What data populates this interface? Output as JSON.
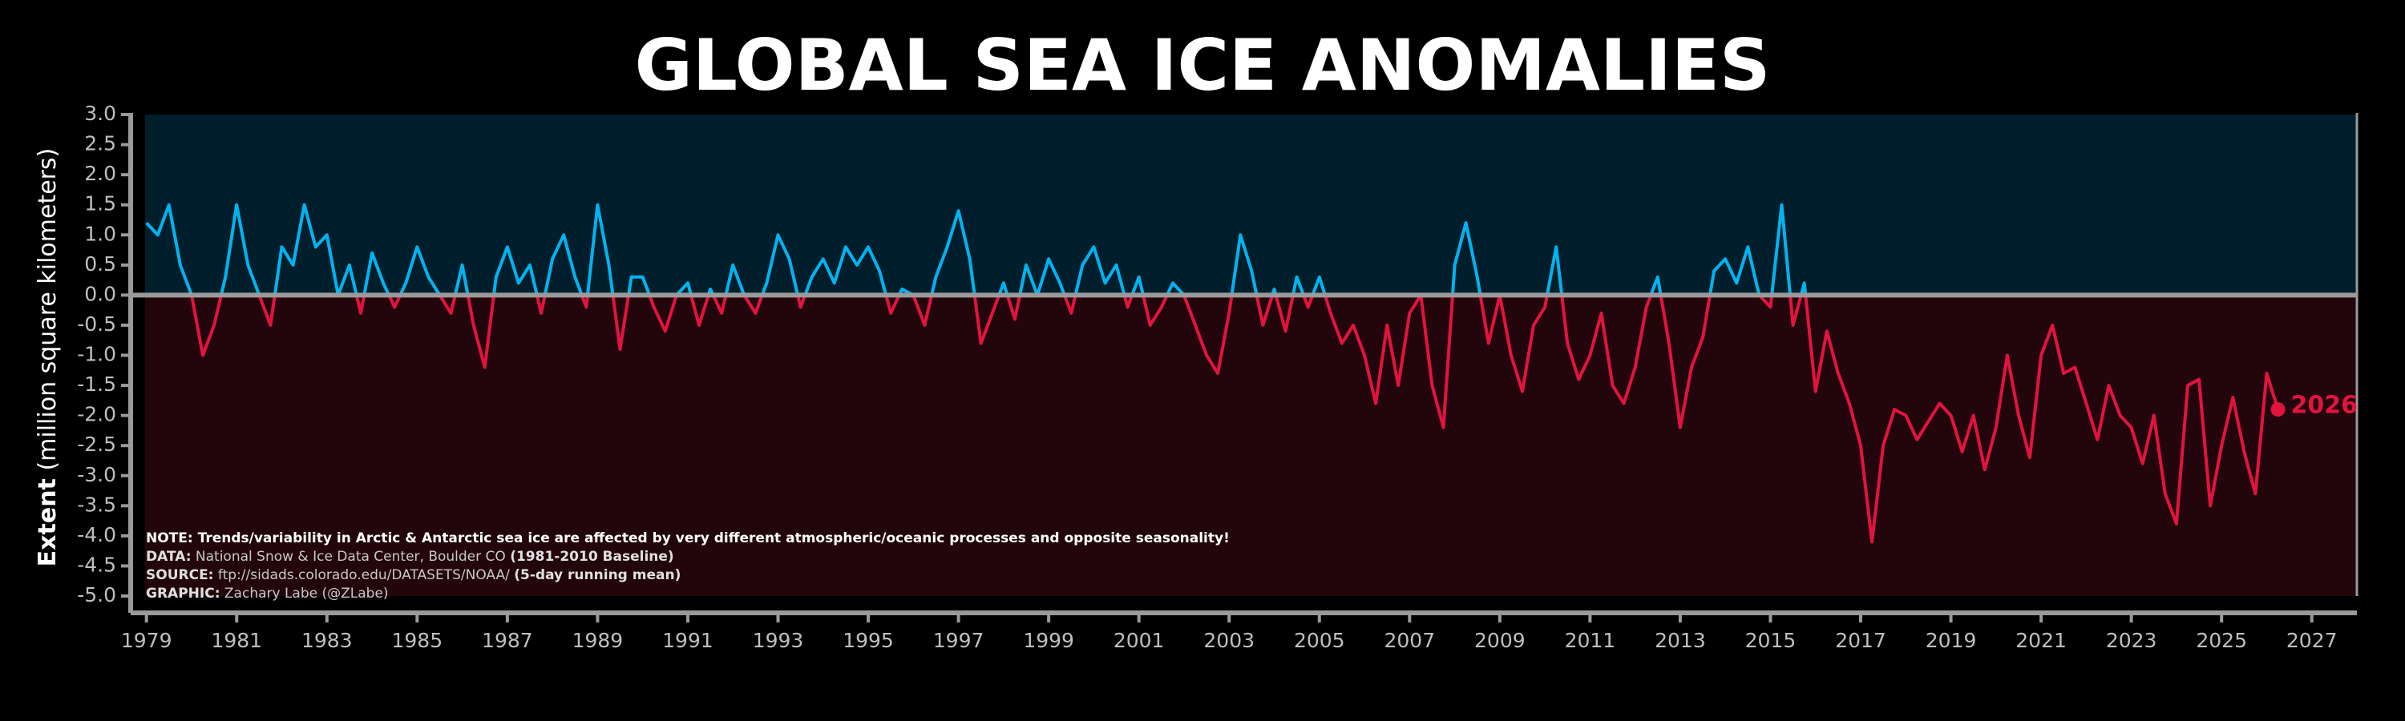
{
  "chart_data": {
    "type": "line",
    "title": "GLOBAL SEA ICE ANOMALIES",
    "y_label": {
      "bold": "Extent",
      "rest": "(million square kilometers)"
    },
    "notes": [
      {
        "label": "NOTE:",
        "text": "Trends/variability in Arctic & Antarctic sea ice are affected by very different atmospheric/oceanic processes and opposite seasonality!"
      },
      {
        "label": "DATA:",
        "text": "National Snow & Ice Data Center, Boulder CO",
        "extra": "(1981-2010 Baseline)"
      },
      {
        "label": "SOURCE:",
        "text": "ftp://sidads.colorado.edu/DATASETS/NOAA/",
        "extra": "(5-day running mean)"
      },
      {
        "label": "GRAPHIC:",
        "text": "Zachary Labe (@ZLabe)"
      }
    ],
    "end_label": "2026",
    "colors": {
      "above": "#00b4f0",
      "below": "#e3133f",
      "bg_above": "#001e2b",
      "bg_below": "#22060c",
      "axis": "#9a9a9a"
    },
    "xlim": [
      1978.65,
      2028
    ],
    "ylim": [
      -5,
      3
    ],
    "xticks": [
      1979,
      1981,
      1983,
      1985,
      1987,
      1989,
      1991,
      1993,
      1995,
      1997,
      1999,
      2001,
      2003,
      2005,
      2007,
      2009,
      2011,
      2013,
      2015,
      2017,
      2019,
      2021,
      2023,
      2025,
      2027
    ],
    "yticks": [
      {
        "value": 3,
        "label": "3.0"
      },
      {
        "value": 2.5,
        "label": "2.5"
      },
      {
        "value": 2,
        "label": "2.0"
      },
      {
        "value": 1.5,
        "label": "1.5"
      },
      {
        "value": 1,
        "label": "1.0"
      },
      {
        "value": 0.5,
        "label": "0.5"
      },
      {
        "value": 0,
        "label": "0.0"
      },
      {
        "value": -0.5,
        "label": "-0.5"
      },
      {
        "value": -1,
        "label": "-1.0"
      },
      {
        "value": -1.5,
        "label": "-1.5"
      },
      {
        "value": -2,
        "label": "-2.0"
      },
      {
        "value": -2.5,
        "label": "-2.5"
      },
      {
        "value": -3,
        "label": "-3.0"
      },
      {
        "value": -3.5,
        "label": "-3.5"
      },
      {
        "value": -4,
        "label": "-4.0"
      },
      {
        "value": -4.5,
        "label": "-4.5"
      },
      {
        "value": -5,
        "label": "-5.0"
      }
    ],
    "x": [
      1979,
      1979.25,
      1979.5,
      1979.75,
      1980,
      1980.25,
      1980.5,
      1980.75,
      1981,
      1981.25,
      1981.5,
      1981.75,
      1982,
      1982.25,
      1982.5,
      1982.75,
      1983,
      1983.25,
      1983.5,
      1983.75,
      1984,
      1984.25,
      1984.5,
      1984.75,
      1985,
      1985.25,
      1985.5,
      1985.75,
      1986,
      1986.25,
      1986.5,
      1986.75,
      1987,
      1987.25,
      1987.5,
      1987.75,
      1988,
      1988.25,
      1988.5,
      1988.75,
      1989,
      1989.25,
      1989.5,
      1989.75,
      1990,
      1990.25,
      1990.5,
      1990.75,
      1991,
      1991.25,
      1991.5,
      1991.75,
      1992,
      1992.25,
      1992.5,
      1992.75,
      1993,
      1993.25,
      1993.5,
      1993.75,
      1994,
      1994.25,
      1994.5,
      1994.75,
      1995,
      1995.25,
      1995.5,
      1995.75,
      1996,
      1996.25,
      1996.5,
      1996.75,
      1997,
      1997.25,
      1997.5,
      1997.75,
      1998,
      1998.25,
      1998.5,
      1998.75,
      1999,
      1999.25,
      1999.5,
      1999.75,
      2000,
      2000.25,
      2000.5,
      2000.75,
      2001,
      2001.25,
      2001.5,
      2001.75,
      2002,
      2002.25,
      2002.5,
      2002.75,
      2003,
      2003.25,
      2003.5,
      2003.75,
      2004,
      2004.25,
      2004.5,
      2004.75,
      2005,
      2005.25,
      2005.5,
      2005.75,
      2006,
      2006.25,
      2006.5,
      2006.75,
      2007,
      2007.25,
      2007.5,
      2007.75,
      2008,
      2008.25,
      2008.5,
      2008.75,
      2009,
      2009.25,
      2009.5,
      2009.75,
      2010,
      2010.25,
      2010.5,
      2010.75,
      2011,
      2011.25,
      2011.5,
      2011.75,
      2012,
      2012.25,
      2012.5,
      2012.75,
      2013,
      2013.25,
      2013.5,
      2013.75,
      2014,
      2014.25,
      2014.5,
      2014.75,
      2015,
      2015.25,
      2015.5,
      2015.75,
      2016,
      2016.25,
      2016.5,
      2016.75,
      2017,
      2017.25,
      2017.5,
      2017.75,
      2018,
      2018.25,
      2018.5,
      2018.75,
      2019,
      2019.25,
      2019.5,
      2019.75,
      2020,
      2020.25,
      2020.5,
      2020.75,
      2021,
      2021.25,
      2021.5,
      2021.75,
      2022,
      2022.25,
      2022.5,
      2022.75,
      2023,
      2023.25,
      2023.5,
      2023.75,
      2024,
      2024.25,
      2024.5,
      2024.75,
      2025,
      2025.25,
      2025.5,
      2025.75,
      2026,
      2026.25
    ],
    "values": [
      1.2,
      1.0,
      1.5,
      0.5,
      0.0,
      -1.0,
      -0.5,
      0.3,
      1.5,
      0.5,
      0.0,
      -0.5,
      0.8,
      0.5,
      1.5,
      0.8,
      1.0,
      0.0,
      0.5,
      -0.3,
      0.7,
      0.2,
      -0.2,
      0.2,
      0.8,
      0.3,
      0.0,
      -0.3,
      0.5,
      -0.5,
      -1.2,
      0.3,
      0.8,
      0.2,
      0.5,
      -0.3,
      0.6,
      1.0,
      0.3,
      -0.2,
      1.5,
      0.5,
      -0.9,
      0.3,
      0.3,
      -0.2,
      -0.6,
      0.0,
      0.2,
      -0.5,
      0.1,
      -0.3,
      0.5,
      0.0,
      -0.3,
      0.2,
      1.0,
      0.6,
      -0.2,
      0.3,
      0.6,
      0.2,
      0.8,
      0.5,
      0.8,
      0.4,
      -0.3,
      0.1,
      0.0,
      -0.5,
      0.3,
      0.8,
      1.4,
      0.6,
      -0.8,
      -0.3,
      0.2,
      -0.4,
      0.5,
      0.0,
      0.6,
      0.2,
      -0.3,
      0.5,
      0.8,
      0.2,
      0.5,
      -0.2,
      0.3,
      -0.5,
      -0.2,
      0.2,
      0.0,
      -0.5,
      -1.0,
      -1.3,
      -0.3,
      1.0,
      0.4,
      -0.5,
      0.1,
      -0.6,
      0.3,
      -0.2,
      0.3,
      -0.3,
      -0.8,
      -0.5,
      -1.0,
      -1.8,
      -0.5,
      -1.5,
      -0.3,
      0.0,
      -1.5,
      -2.2,
      0.5,
      1.2,
      0.3,
      -0.8,
      0.0,
      -1.0,
      -1.6,
      -0.5,
      -0.2,
      0.8,
      -0.8,
      -1.4,
      -1.0,
      -0.3,
      -1.5,
      -1.8,
      -1.2,
      -0.2,
      0.3,
      -0.8,
      -2.2,
      -1.2,
      -0.7,
      0.4,
      0.6,
      0.2,
      0.8,
      0.0,
      -0.2,
      1.5,
      -0.5,
      0.2,
      -1.6,
      -0.6,
      -1.3,
      -1.8,
      -2.5,
      -4.1,
      -2.5,
      -1.9,
      -2.0,
      -2.4,
      -2.1,
      -1.8,
      -2.0,
      -2.6,
      -2.0,
      -2.9,
      -2.2,
      -1.0,
      -2.0,
      -2.7,
      -1.0,
      -0.5,
      -1.3,
      -1.2,
      -1.8,
      -2.4,
      -1.5,
      -2.0,
      -2.2,
      -2.8,
      -2.0,
      -3.3,
      -3.8,
      -1.5,
      -1.4,
      -3.5,
      -2.5,
      -1.7,
      -2.6,
      -3.3,
      -1.3,
      -1.9
    ]
  }
}
